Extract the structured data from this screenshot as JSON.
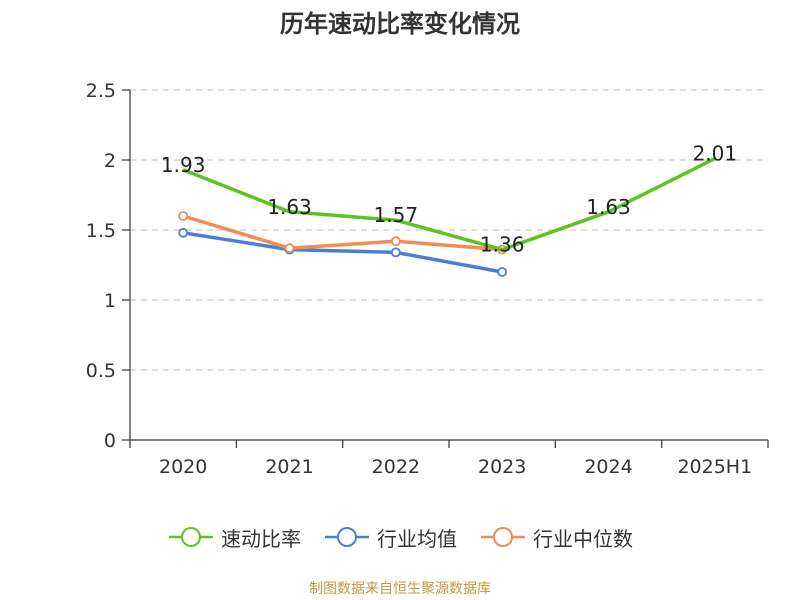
{
  "title": "历年速动比率变化情况",
  "source": "制图数据来自恒生聚源数据库",
  "chart_data": {
    "type": "line",
    "categories": [
      "2020",
      "2021",
      "2022",
      "2023",
      "2024",
      "2025H1"
    ],
    "ylim": [
      0,
      2.5
    ],
    "yticks": [
      0,
      0.5,
      1,
      1.5,
      2,
      2.5
    ],
    "ytick_labels": [
      "0",
      "0.5",
      "1",
      "1.5",
      "2",
      "2.5"
    ],
    "grid": true,
    "legend_position": "bottom",
    "series": [
      {
        "name": "速动比率",
        "color": "#5cc41f",
        "values": [
          1.93,
          1.63,
          1.57,
          1.36,
          1.63,
          2.01
        ],
        "labels": [
          "1.93",
          "1.63",
          "1.57",
          "1.36",
          "1.63",
          "2.01"
        ],
        "show_labels": true,
        "markers": false
      },
      {
        "name": "行业均值",
        "color": "#4a7fd6",
        "values": [
          1.48,
          1.36,
          1.34,
          1.2,
          null,
          null
        ],
        "show_labels": false,
        "markers": true
      },
      {
        "name": "行业中位数",
        "color": "#f38b52",
        "values": [
          1.6,
          1.37,
          1.42,
          1.36,
          null,
          null
        ],
        "show_labels": false,
        "markers": true
      }
    ]
  }
}
